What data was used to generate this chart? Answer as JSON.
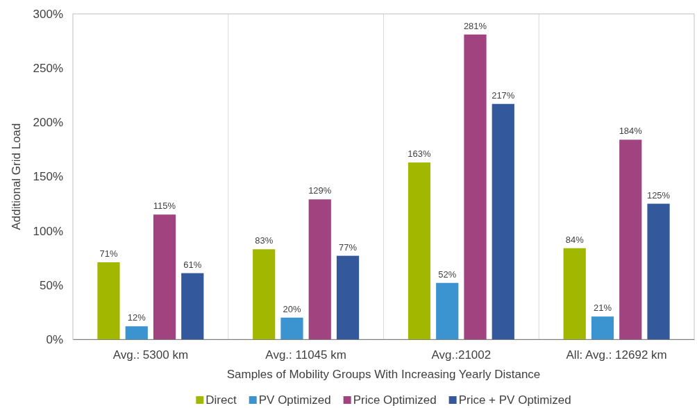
{
  "chart_data": {
    "type": "bar",
    "xlabel": "Samples of Mobility Groups With Increasing Yearly Distance",
    "ylabel": "Additional Grid Load",
    "categories": [
      "Avg.: 5300 km",
      "Avg.: 11045 km",
      "Avg.:21002",
      "All: Avg.: 12692 km"
    ],
    "series": [
      {
        "name": "Direct",
        "color": "#a2b800",
        "values": [
          71,
          83,
          163,
          84
        ]
      },
      {
        "name": "PV Optimized",
        "color": "#3b93d0",
        "values": [
          12,
          20,
          52,
          21
        ]
      },
      {
        "name": "Price Optimized",
        "color": "#a0437f",
        "values": [
          115,
          129,
          281,
          184
        ]
      },
      {
        "name": "Price + PV Optimized",
        "color": "#33589c",
        "values": [
          61,
          77,
          217,
          125
        ]
      }
    ],
    "value_labels": [
      [
        "71%",
        "83%",
        "163%",
        "84%"
      ],
      [
        "12%",
        "20%",
        "52%",
        "21%"
      ],
      [
        "115%",
        "129%",
        "281%",
        "184%"
      ],
      [
        "61%",
        "77%",
        "217%",
        "125%"
      ]
    ],
    "ylim": [
      0,
      300
    ],
    "yticks": [
      {
        "value": 0,
        "label": "0%"
      },
      {
        "value": 50,
        "label": "50%"
      },
      {
        "value": 100,
        "label": "100%"
      },
      {
        "value": 150,
        "label": "150%"
      },
      {
        "value": 200,
        "label": "200%"
      },
      {
        "value": 250,
        "label": "250%"
      },
      {
        "value": 300,
        "label": "300%"
      }
    ],
    "grid": "x",
    "legend": "bottom"
  }
}
